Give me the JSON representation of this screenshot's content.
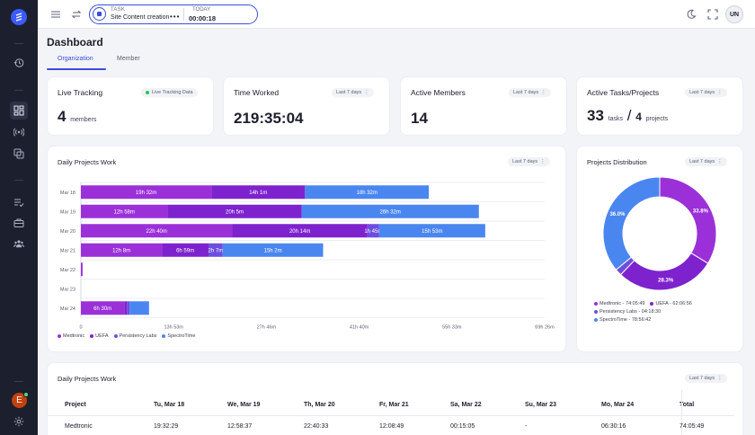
{
  "topbar": {
    "task_label": "TASK",
    "task_name": "Site Content creation",
    "task_more": "•••",
    "today_label": "TODAY",
    "today_time": "00:00:18",
    "user_initials": "UN"
  },
  "sidebar": {
    "user_initial": "E"
  },
  "page": {
    "title": "Dashboard",
    "tabs": [
      {
        "label": "Organization",
        "active": true
      },
      {
        "label": "Member",
        "active": false
      }
    ]
  },
  "cards": {
    "live_tracking": {
      "title": "Live Tracking",
      "chip": "Live Tracking Data",
      "value": "4",
      "unit": "members"
    },
    "time_worked": {
      "title": "Time Worked",
      "chip": "Last 7 days",
      "value": "219:35:04"
    },
    "active_members": {
      "title": "Active Members",
      "chip": "Last 7 days",
      "value": "14"
    },
    "active_tasks": {
      "title": "Active Tasks/Projects",
      "chip": "Last 7 days",
      "tasks_value": "33",
      "tasks_unit": "tasks",
      "separator": "/",
      "projects_value": "4",
      "projects_unit": "projects"
    }
  },
  "daily_chart": {
    "title": "Daily Projects Work",
    "chip": "Last 7 days"
  },
  "distribution": {
    "title": "Projects Distribution",
    "chip": "Last 7 days",
    "legend": [
      {
        "label": "Medtronic - 74:05:49",
        "color": "#9b30d9"
      },
      {
        "label": "UEFA - 62:06:56",
        "color": "#7e22ce"
      },
      {
        "label": "Persistency Labs - 04:18:30",
        "color": "#6d4de0"
      },
      {
        "label": "SpectroTime - 78:56:42",
        "color": "#4a86f0"
      }
    ]
  },
  "chart_data": [
    {
      "type": "bar",
      "orientation": "horizontal",
      "stacked": true,
      "categories": [
        "Mar 18",
        "Mar 19",
        "Mar 20",
        "Mar 21",
        "Mar 22",
        "Mar 23",
        "Mar 24"
      ],
      "series": [
        {
          "name": "Medtronic",
          "color": "#9b30d9",
          "values_hours": [
            19.53,
            12.97,
            22.67,
            12.13,
            0.25,
            0,
            6.5
          ],
          "labels": [
            "19h 32m",
            "12h 58m",
            "22h 40m",
            "12h 8m",
            "",
            "",
            "6h 30m"
          ]
        },
        {
          "name": "UEFA",
          "color": "#7e22ce",
          "values_hours": [
            14.02,
            20.08,
            20.23,
            6.98,
            0,
            0,
            0.4
          ],
          "labels": [
            "14h 1m",
            "20h 5m",
            "20h 14m",
            "6h 59m",
            "",
            "",
            ""
          ]
        },
        {
          "name": "Persistency Labs",
          "color": "#6d4de0",
          "values_hours": [
            0,
            0,
            1.75,
            2.12,
            0,
            0,
            0.4
          ],
          "labels": [
            "",
            "",
            "1h 45m",
            "2h 7m",
            "",
            "",
            ""
          ]
        },
        {
          "name": "SpectroTime",
          "color": "#4a86f0",
          "values_hours": [
            18.53,
            26.53,
            15.88,
            15.03,
            0,
            0,
            2.9
          ],
          "labels": [
            "18h 32m",
            "26h 32m",
            "15h 53m",
            "15h 2m",
            "",
            "",
            ""
          ]
        }
      ],
      "x_ticks": [
        "0",
        "13h 53m",
        "27h 46m",
        "41h 40m",
        "55h 33m",
        "69h 26m"
      ],
      "x_max_hours": 69.43,
      "legend_position": "bottom-left"
    },
    {
      "type": "pie",
      "donut": true,
      "slices": [
        {
          "name": "Medtronic",
          "value": 33.8,
          "label": "33.8%",
          "color": "#9b30d9"
        },
        {
          "name": "UEFA",
          "value": 28.3,
          "label": "28.3%",
          "color": "#7e22ce"
        },
        {
          "name": "Persistency Labs",
          "value": 1.9,
          "label": "",
          "color": "#6d4de0"
        },
        {
          "name": "SpectroTime",
          "value": 36.0,
          "label": "36.0%",
          "color": "#4a86f0"
        }
      ]
    }
  ],
  "daily_table": {
    "title": "Daily Projects Work",
    "chip": "Last 7 days",
    "headers": [
      "Project",
      "Tu, Mar 18",
      "We, Mar 19",
      "Th, Mar 20",
      "Fr, Mar 21",
      "Sa, Mar 22",
      "Su, Mar 23",
      "Mo, Mar 24",
      "Total"
    ],
    "rows": [
      [
        "Medtronic",
        "19:32:29",
        "12:58:37",
        "22:40:33",
        "12:08:49",
        "00:15:05",
        "-",
        "06:30:16",
        "74:05:49"
      ]
    ]
  }
}
